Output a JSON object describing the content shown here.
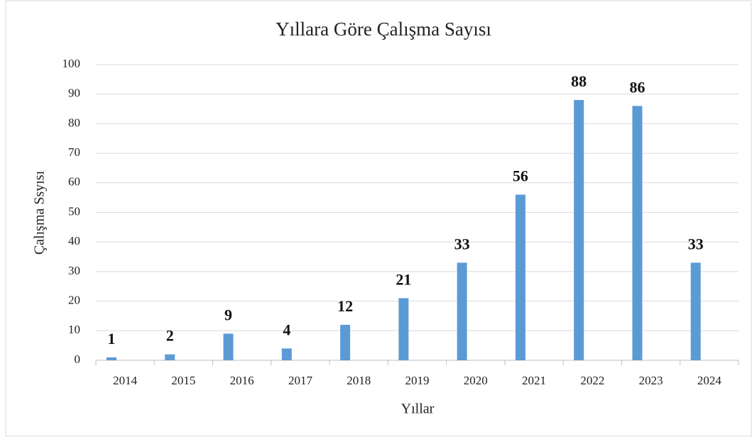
{
  "chart_data": {
    "type": "bar",
    "title": "Yıllara Göre Çalışma Sayısı",
    "x_label": "Yıllar",
    "y_label": "Çalışma Ssyısı",
    "categories": [
      "2014",
      "2015",
      "2016",
      "2017",
      "2018",
      "2019",
      "2020",
      "2021",
      "2022",
      "2023",
      "2024"
    ],
    "values": [
      1,
      2,
      9,
      4,
      12,
      21,
      33,
      56,
      88,
      86,
      33
    ],
    "color": "#5b9bd5",
    "ylim": [
      0,
      100
    ],
    "yticks": [
      0,
      10,
      20,
      30,
      40,
      50,
      60,
      70,
      80,
      90,
      100
    ],
    "grid": true
  }
}
